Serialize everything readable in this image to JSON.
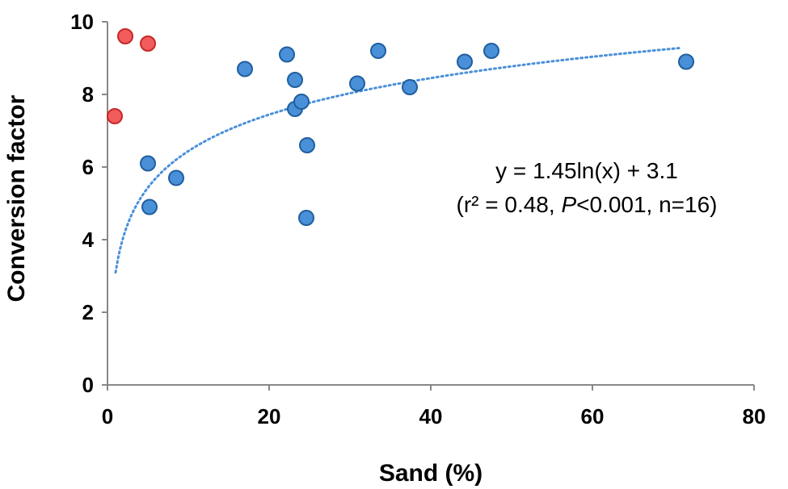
{
  "chart_data": {
    "type": "scatter",
    "xlabel": "Sand (%)",
    "ylabel": "Conversion factor",
    "xlim": [
      0,
      80
    ],
    "ylim": [
      0,
      10
    ],
    "x_ticks": [
      "0",
      "20",
      "40",
      "60",
      "80"
    ],
    "y_ticks": [
      "0",
      "2",
      "4",
      "6",
      "8",
      "10"
    ],
    "grid": false,
    "series": [
      {
        "color": "#4a90d9",
        "stroke": "#1f5f9e",
        "points": [
          {
            "x": 5.0,
            "y": 6.1
          },
          {
            "x": 5.2,
            "y": 4.9
          },
          {
            "x": 8.5,
            "y": 5.7
          },
          {
            "x": 17.0,
            "y": 8.7
          },
          {
            "x": 22.2,
            "y": 9.1
          },
          {
            "x": 23.2,
            "y": 8.4
          },
          {
            "x": 23.2,
            "y": 7.6
          },
          {
            "x": 24.0,
            "y": 7.8
          },
          {
            "x": 24.7,
            "y": 6.6
          },
          {
            "x": 24.6,
            "y": 4.6
          },
          {
            "x": 30.9,
            "y": 8.3
          },
          {
            "x": 33.5,
            "y": 9.2
          },
          {
            "x": 37.4,
            "y": 8.2
          },
          {
            "x": 44.2,
            "y": 8.9
          },
          {
            "x": 47.5,
            "y": 9.2
          },
          {
            "x": 71.6,
            "y": 8.9
          }
        ]
      },
      {
        "color": "#f25c5c",
        "stroke": "#c62828",
        "points": [
          {
            "x": 0.9,
            "y": 7.4
          },
          {
            "x": 2.2,
            "y": 9.6
          },
          {
            "x": 5.0,
            "y": 9.4
          }
        ]
      }
    ],
    "trendline": {
      "type": "logarithmic",
      "a": 1.45,
      "b": 3.1,
      "x_range": [
        1,
        71
      ],
      "color": "#4a90d9",
      "style": "dotted"
    },
    "annotations": {
      "equation": "y = 1.45ln(x) + 3.1",
      "stats_prefix": "(r² = 0.48, ",
      "stats_italic": "P",
      "stats_suffix": "<0.001, n=16)"
    }
  }
}
